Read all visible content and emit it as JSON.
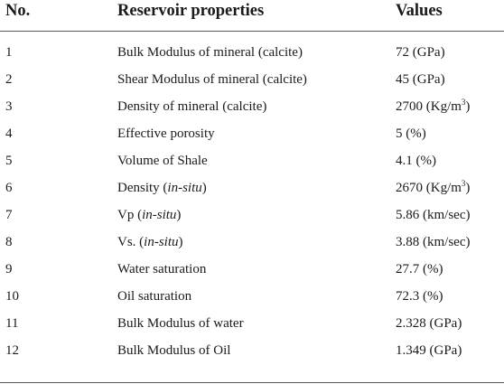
{
  "table": {
    "headers": {
      "no": "No.",
      "property": "Reservoir properties",
      "value": "Values"
    },
    "rows": [
      {
        "no": "1",
        "property_pre": "Bulk Modulus of mineral (calcite)",
        "property_italic": "",
        "property_post": "",
        "value": "72 (GPa)",
        "value_sup": "",
        "value_post": ""
      },
      {
        "no": "2",
        "property_pre": "Shear Modulus of mineral (calcite)",
        "property_italic": "",
        "property_post": "",
        "value": "45 (GPa)",
        "value_sup": "",
        "value_post": ""
      },
      {
        "no": "3",
        "property_pre": "Density of mineral (calcite)",
        "property_italic": "",
        "property_post": "",
        "value": "2700 (Kg/m",
        "value_sup": "3",
        "value_post": ")"
      },
      {
        "no": "4",
        "property_pre": "Effective porosity",
        "property_italic": "",
        "property_post": "",
        "value": "5 (%)",
        "value_sup": "",
        "value_post": ""
      },
      {
        "no": "5",
        "property_pre": "Volume of Shale",
        "property_italic": "",
        "property_post": "",
        "value": "4.1 (%)",
        "value_sup": "",
        "value_post": ""
      },
      {
        "no": "6",
        "property_pre": "Density (",
        "property_italic": "in-situ",
        "property_post": ")",
        "value": "2670 (Kg/m",
        "value_sup": "3",
        "value_post": ")"
      },
      {
        "no": "7",
        "property_pre": "Vp (",
        "property_italic": "in-situ",
        "property_post": ")",
        "value": "5.86 (km/sec)",
        "value_sup": "",
        "value_post": ""
      },
      {
        "no": "8",
        "property_pre": "Vs. (",
        "property_italic": "in-situ",
        "property_post": ")",
        "value": "3.88 (km/sec)",
        "value_sup": "",
        "value_post": ""
      },
      {
        "no": "9",
        "property_pre": "Water saturation",
        "property_italic": "",
        "property_post": "",
        "value": "27.7 (%)",
        "value_sup": "",
        "value_post": ""
      },
      {
        "no": "10",
        "property_pre": "Oil saturation",
        "property_italic": "",
        "property_post": "",
        "value": "72.3 (%)",
        "value_sup": "",
        "value_post": ""
      },
      {
        "no": "11",
        "property_pre": "Bulk Modulus of water",
        "property_italic": "",
        "property_post": "",
        "value": "2.328 (GPa)",
        "value_sup": "",
        "value_post": ""
      },
      {
        "no": "12",
        "property_pre": "Bulk Modulus of Oil",
        "property_italic": "",
        "property_post": "",
        "value": "1.349 (GPa)",
        "value_sup": "",
        "value_post": ""
      }
    ]
  }
}
